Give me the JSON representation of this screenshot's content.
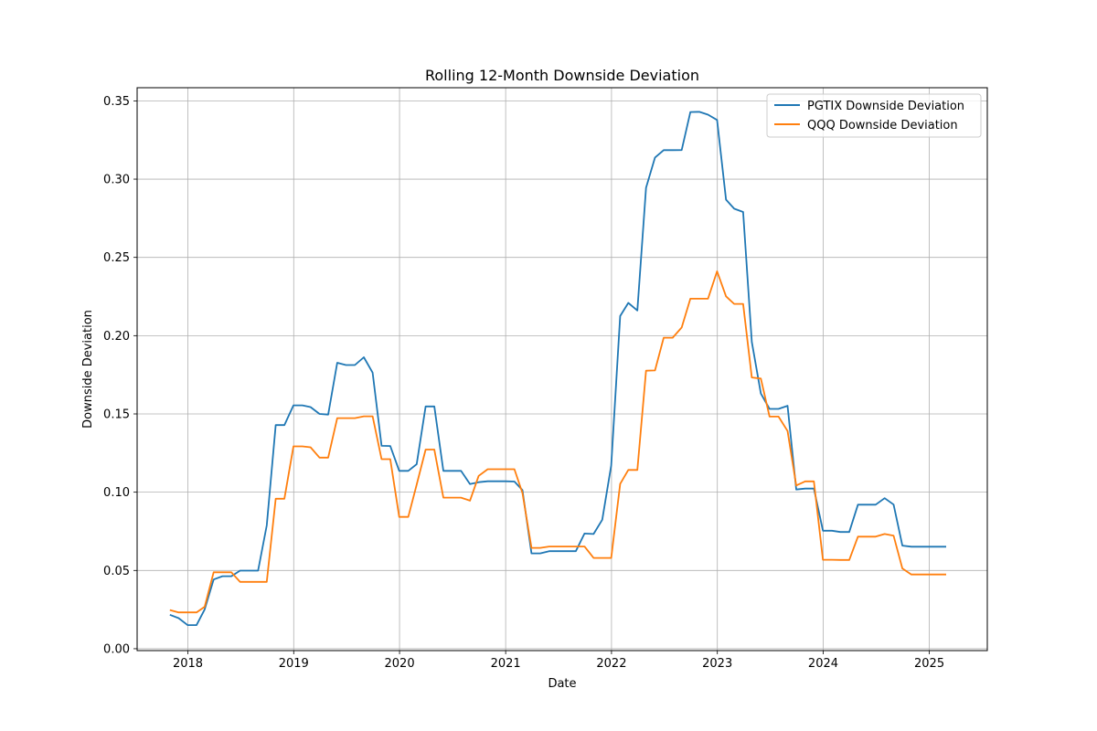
{
  "chart_data": {
    "type": "line",
    "title": "Rolling 12-Month Downside Deviation",
    "xlabel": "Date",
    "ylabel": "Downside Deviation",
    "xlim": [
      "2017-07-10",
      "2025-07-20"
    ],
    "ylim": [
      -0.0012,
      0.3584
    ],
    "xticks": [
      "2018",
      "2019",
      "2020",
      "2021",
      "2022",
      "2023",
      "2024",
      "2025"
    ],
    "yticks": [
      "0.00",
      "0.05",
      "0.10",
      "0.15",
      "0.20",
      "0.25",
      "0.30",
      "0.35"
    ],
    "grid": true,
    "legend": "top-right",
    "x": [
      "2017-10-31",
      "2017-11-30",
      "2017-12-31",
      "2018-01-31",
      "2018-02-28",
      "2018-03-31",
      "2018-04-30",
      "2018-05-31",
      "2018-06-30",
      "2018-07-31",
      "2018-08-31",
      "2018-09-30",
      "2018-10-31",
      "2018-11-30",
      "2018-12-31",
      "2019-01-31",
      "2019-02-28",
      "2019-03-31",
      "2019-04-30",
      "2019-05-31",
      "2019-06-30",
      "2019-07-31",
      "2019-08-31",
      "2019-09-30",
      "2019-10-31",
      "2019-11-30",
      "2019-12-31",
      "2020-01-31",
      "2020-02-29",
      "2020-03-31",
      "2020-04-30",
      "2020-05-31",
      "2020-06-30",
      "2020-07-31",
      "2020-08-31",
      "2020-09-30",
      "2020-10-31",
      "2020-11-30",
      "2020-12-31",
      "2021-01-31",
      "2021-02-28",
      "2021-03-31",
      "2021-04-30",
      "2021-05-31",
      "2021-06-30",
      "2021-07-31",
      "2021-08-31",
      "2021-09-30",
      "2021-10-31",
      "2021-11-30",
      "2021-12-31",
      "2022-01-31",
      "2022-02-28",
      "2022-03-31",
      "2022-04-30",
      "2022-05-31",
      "2022-06-30",
      "2022-07-31",
      "2022-08-31",
      "2022-09-30",
      "2022-10-31",
      "2022-11-30",
      "2022-12-31",
      "2023-01-31",
      "2023-02-28",
      "2023-03-31",
      "2023-04-30",
      "2023-05-31",
      "2023-06-30",
      "2023-07-31",
      "2023-08-31",
      "2023-09-30",
      "2023-10-31",
      "2023-11-30",
      "2023-12-31",
      "2024-01-31",
      "2024-02-29",
      "2024-03-31",
      "2024-04-30",
      "2024-05-31",
      "2024-06-30",
      "2024-07-31",
      "2024-08-31",
      "2024-09-30",
      "2024-10-31",
      "2024-11-30",
      "2024-12-31",
      "2025-01-31",
      "2025-02-28"
    ],
    "series": [
      {
        "name": "PGTIX Downside Deviation",
        "color": "#1f77b4",
        "values": [
          0.0217,
          0.0195,
          0.0151,
          0.0151,
          0.0251,
          0.0442,
          0.0463,
          0.0463,
          0.0499,
          0.0499,
          0.0499,
          0.0788,
          0.1429,
          0.1429,
          0.1555,
          0.1555,
          0.1544,
          0.15,
          0.1496,
          0.1827,
          0.1812,
          0.1812,
          0.1862,
          0.1764,
          0.1296,
          0.1295,
          0.1136,
          0.1136,
          0.1179,
          0.1548,
          0.1548,
          0.1136,
          0.1136,
          0.1136,
          0.1052,
          0.1064,
          0.107,
          0.107,
          0.107,
          0.1068,
          0.1013,
          0.0609,
          0.0609,
          0.0623,
          0.0623,
          0.0623,
          0.0623,
          0.0736,
          0.0733,
          0.0824,
          0.1171,
          0.2125,
          0.2209,
          0.2161,
          0.2945,
          0.3138,
          0.3185,
          0.3185,
          0.3186,
          0.3429,
          0.343,
          0.3412,
          0.3378,
          0.2869,
          0.2811,
          0.279,
          0.196,
          0.163,
          0.1532,
          0.1532,
          0.1552,
          0.1017,
          0.1023,
          0.1023,
          0.0754,
          0.0754,
          0.0746,
          0.0746,
          0.092,
          0.092,
          0.092,
          0.0962,
          0.0921,
          0.0659,
          0.0652,
          0.0652,
          0.0652,
          0.0652,
          0.0652
        ]
      },
      {
        "name": "QQQ Downside Deviation",
        "color": "#ff7f0e",
        "values": [
          0.0247,
          0.0232,
          0.0232,
          0.0232,
          0.0268,
          0.0488,
          0.0488,
          0.0488,
          0.0427,
          0.0427,
          0.0427,
          0.0427,
          0.0958,
          0.0958,
          0.1293,
          0.1293,
          0.1287,
          0.1221,
          0.1221,
          0.1473,
          0.1473,
          0.1473,
          0.1485,
          0.1485,
          0.1211,
          0.1211,
          0.0842,
          0.0842,
          0.1048,
          0.1272,
          0.1272,
          0.0965,
          0.0965,
          0.0965,
          0.0946,
          0.1104,
          0.1147,
          0.1147,
          0.1147,
          0.1147,
          0.0995,
          0.0644,
          0.0644,
          0.0653,
          0.0653,
          0.0653,
          0.0653,
          0.0653,
          0.058,
          0.058,
          0.058,
          0.1053,
          0.1142,
          0.1142,
          0.1776,
          0.1778,
          0.1987,
          0.1987,
          0.2052,
          0.2236,
          0.2236,
          0.2236,
          0.2411,
          0.2251,
          0.2203,
          0.2203,
          0.1733,
          0.1726,
          0.1483,
          0.1483,
          0.1391,
          0.1043,
          0.1069,
          0.1069,
          0.0568,
          0.0568,
          0.0567,
          0.0567,
          0.0716,
          0.0716,
          0.0716,
          0.0733,
          0.0722,
          0.0513,
          0.0474,
          0.0474,
          0.0474,
          0.0474,
          0.0474
        ]
      }
    ]
  }
}
